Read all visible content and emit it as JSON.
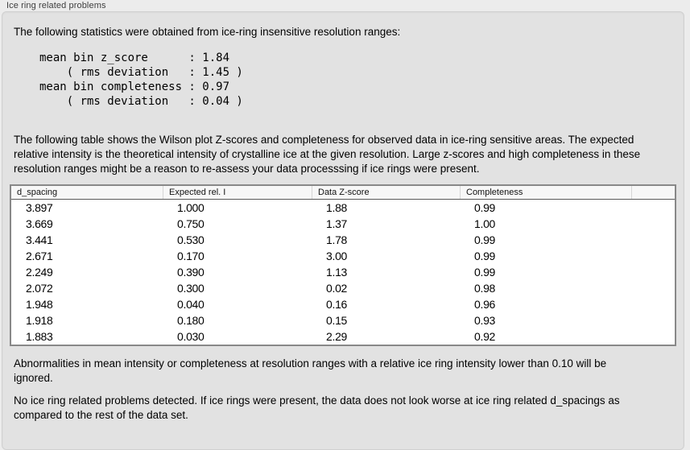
{
  "header": {
    "title": "Ice ring related problems"
  },
  "panel": {
    "intro": "The following statistics were obtained from ice-ring insensitive resolution ranges:",
    "statistics": {
      "lines": [
        "mean bin z_score      : 1.84",
        "    ( rms deviation   : 1.45 )",
        "mean bin completeness : 0.97",
        "    ( rms deviation   : 0.04 )"
      ]
    },
    "table_description": "The following table shows the Wilson plot Z-scores and completeness for observed data in ice-ring sensitive areas. The expected relative intensity is the theoretical intensity of crystalline ice at the given resolution. Large z-scores and high completeness in these resolution ranges might be a reason to re-assess your data processsing if ice rings were present.",
    "table": {
      "columns": [
        "d_spacing",
        "Expected rel. I",
        "Data Z-score",
        "Completeness"
      ],
      "rows": [
        [
          "3.897",
          "1.000",
          "1.88",
          "0.99"
        ],
        [
          "3.669",
          "0.750",
          "1.37",
          "1.00"
        ],
        [
          "3.441",
          "0.530",
          "1.78",
          "0.99"
        ],
        [
          "2.671",
          "0.170",
          "3.00",
          "0.99"
        ],
        [
          "2.249",
          "0.390",
          "1.13",
          "0.99"
        ],
        [
          "2.072",
          "0.300",
          "0.02",
          "0.98"
        ],
        [
          "1.948",
          "0.040",
          "0.16",
          "0.96"
        ],
        [
          "1.918",
          "0.180",
          "0.15",
          "0.93"
        ],
        [
          "1.883",
          "0.030",
          "2.29",
          "0.92"
        ]
      ]
    },
    "note_ignore": "Abnormalities in mean intensity or completeness at resolution ranges with a relative ice ring intensity lower than 0.10 will be ignored.",
    "conclusion": "No ice ring related problems detected. If ice rings were present, the data does not look worse at ice ring related d_spacings as compared to the rest of the data set."
  },
  "colors": {
    "outer_bg": "#ececec",
    "panel_bg": "#e2e2e2",
    "panel_border": "#d0d0d0",
    "table_bg": "#ffffff",
    "table_border": "#888888",
    "header_bg": "#f7f7f7",
    "header_rule": "#5a5a5a",
    "title_text": "#3e3e3e",
    "text": "#000000"
  }
}
